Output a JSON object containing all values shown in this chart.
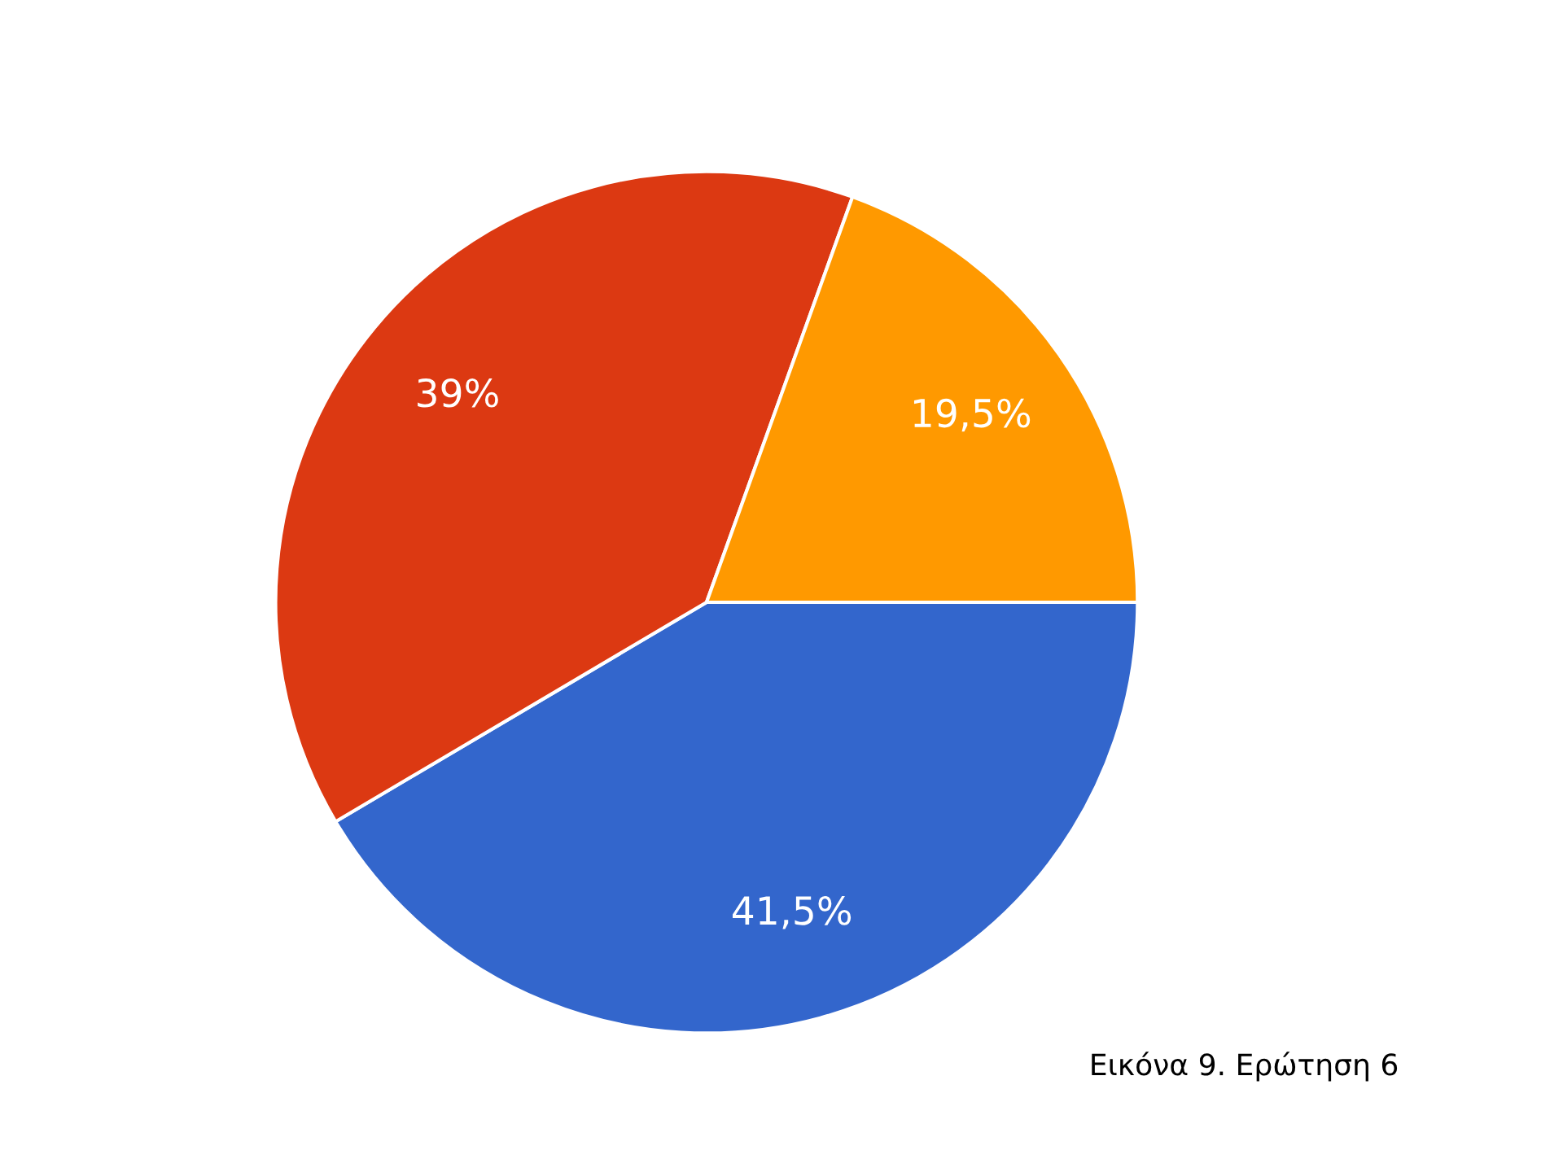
{
  "chart_data": {
    "type": "pie",
    "categories": [
      null,
      null,
      null
    ],
    "values": [
      41.5,
      39,
      19.5
    ],
    "colors": [
      "#3366cc",
      "#dc3912",
      "#ff9900"
    ],
    "value_labels": [
      "41,5%",
      "39%",
      "19,5%"
    ],
    "annotations": [
      "Εικόνα 9. Ερώτηση 6"
    ]
  }
}
